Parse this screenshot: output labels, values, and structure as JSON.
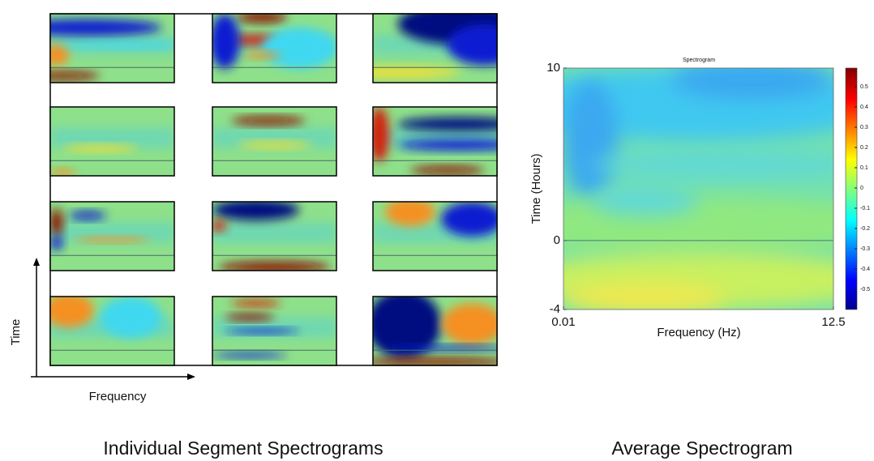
{
  "left": {
    "x_axis_label": "Frequency",
    "y_axis_label": "Time",
    "caption": "Individual Segment Spectrograms"
  },
  "chart_data": {
    "type": "heatmap",
    "title": "Spectrogram",
    "caption": "Average Spectrogram",
    "x_label": "Frequency (Hz)",
    "y_label": "Time (Hours)",
    "xlim": [
      0.01,
      12.5
    ],
    "xticks": [
      0.01,
      12.5
    ],
    "ylim": [
      -4,
      10
    ],
    "yticks": [
      -4,
      0,
      10
    ],
    "colorbar_ticks": [
      0.5,
      0.4,
      0.3,
      0.2,
      0.1,
      0,
      -0.1,
      -0.2,
      -0.3,
      -0.4,
      -0.5
    ]
  }
}
